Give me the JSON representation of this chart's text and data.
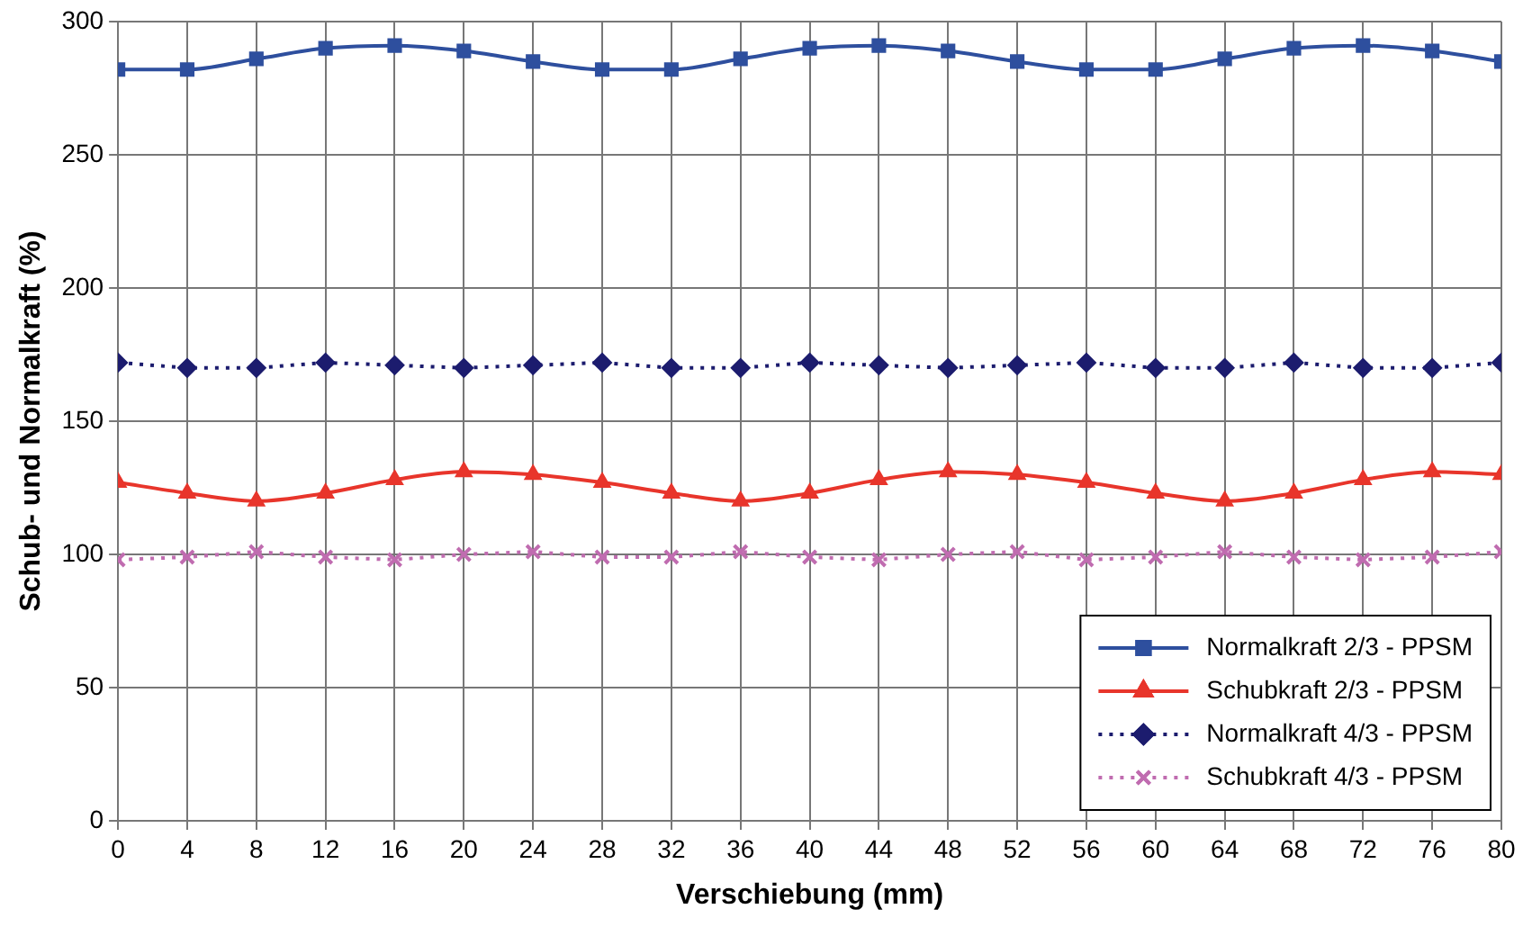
{
  "chart_data": {
    "type": "line",
    "xlabel": "Verschiebung (mm)",
    "ylabel": "Schub- und Normalkraft (%)",
    "x": [
      0,
      4,
      8,
      12,
      16,
      20,
      24,
      28,
      32,
      36,
      40,
      44,
      48,
      52,
      56,
      60,
      64,
      68,
      72,
      76,
      80
    ],
    "xlim": [
      0,
      80
    ],
    "xticks": [
      0,
      4,
      8,
      12,
      16,
      20,
      24,
      28,
      32,
      36,
      40,
      44,
      48,
      52,
      56,
      60,
      64,
      68,
      72,
      76,
      80
    ],
    "ylim": [
      0,
      300
    ],
    "yticks": [
      0,
      50,
      100,
      150,
      200,
      250,
      300
    ],
    "grid": true,
    "legend": "bottom right",
    "series": [
      {
        "name": "Normalkraft 2/3 - PPSM",
        "color": "#2e4f9e",
        "marker": "square",
        "line_style": "solid",
        "values": [
          282,
          282,
          286,
          290,
          291,
          289,
          285,
          282,
          282,
          286,
          290,
          291,
          289,
          285,
          282,
          282,
          286,
          290,
          291,
          289,
          285
        ]
      },
      {
        "name": "Schubkraft 2/3 - PPSM",
        "color": "#e8352b",
        "marker": "triangle",
        "line_style": "solid",
        "values": [
          127,
          123,
          120,
          123,
          128,
          131,
          130,
          127,
          123,
          120,
          123,
          128,
          131,
          130,
          127,
          123,
          120,
          123,
          128,
          131,
          130
        ]
      },
      {
        "name": "Normalkraft 4/3 - PPSM",
        "color": "#1c1c6e",
        "marker": "diamond",
        "line_style": "dotted",
        "values": [
          172,
          170,
          170,
          172,
          171,
          170,
          171,
          172,
          170,
          170,
          172,
          171,
          170,
          171,
          172,
          170,
          170,
          172,
          170,
          170,
          172
        ]
      },
      {
        "name": "Schubkraft 4/3 - PPSM",
        "color": "#c06cb0",
        "marker": "cross",
        "line_style": "dotted",
        "values": [
          98,
          99,
          101,
          99,
          98,
          100,
          101,
          99,
          99,
          101,
          99,
          98,
          100,
          101,
          98,
          99,
          101,
          99,
          98,
          99,
          101
        ]
      }
    ]
  }
}
